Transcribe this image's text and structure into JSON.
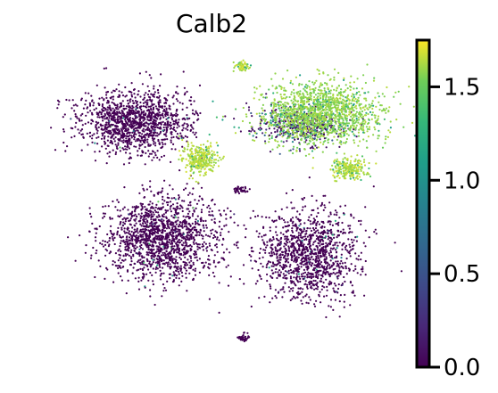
{
  "chart_data": {
    "type": "scatter",
    "title": "Calb2",
    "xlabel": "",
    "ylabel": "",
    "axes_visible": false,
    "colormap": "viridis",
    "colorbar": {
      "ticks": [
        "0.0",
        "0.5",
        "1.0",
        "1.5"
      ],
      "tick_values": [
        0.0,
        0.5,
        1.0,
        1.5
      ],
      "range": [
        0.0,
        1.75
      ],
      "placement": "right"
    },
    "colors": {
      "low": "#440154",
      "mid_low": "#3b528b",
      "mid": "#21918c",
      "mid_high": "#5ec962",
      "high": "#fde725"
    },
    "clusters": [
      {
        "label": "top-small",
        "cx": 0.21,
        "cy": 0.88,
        "spread": [
          0.05,
          0.04
        ],
        "n": 60,
        "value": 1.7
      },
      {
        "label": "left-upper",
        "cx": -0.55,
        "cy": 0.48,
        "spread": [
          0.38,
          0.22
        ],
        "n": 1300,
        "value": 0.0
      },
      {
        "label": "left-junction-yellow",
        "cx": -0.08,
        "cy": 0.22,
        "spread": [
          0.12,
          0.1
        ],
        "n": 320,
        "value": 1.7
      },
      {
        "label": "left-lower",
        "cx": -0.35,
        "cy": -0.35,
        "spread": [
          0.4,
          0.3
        ],
        "n": 1500,
        "value": 0.0
      },
      {
        "label": "right-upper-yellow",
        "cx": 0.78,
        "cy": 0.55,
        "spread": [
          0.42,
          0.22
        ],
        "n": 1400,
        "value": 1.65
      },
      {
        "label": "right-upper-mixed",
        "cx": 0.62,
        "cy": 0.46,
        "spread": [
          0.36,
          0.14
        ],
        "n": 500,
        "value": 0.4
      },
      {
        "label": "right-mid-yellow",
        "cx": 0.98,
        "cy": 0.15,
        "spread": [
          0.14,
          0.08
        ],
        "n": 220,
        "value": 1.7
      },
      {
        "label": "right-lower",
        "cx": 0.68,
        "cy": -0.45,
        "spread": [
          0.35,
          0.32
        ],
        "n": 1200,
        "value": 0.0
      },
      {
        "label": "center-small",
        "cx": 0.2,
        "cy": 0.0,
        "spread": [
          0.06,
          0.02
        ],
        "n": 40,
        "value": 0.0
      },
      {
        "label": "bottom-small",
        "cx": 0.22,
        "cy": -1.05,
        "spread": [
          0.05,
          0.03
        ],
        "n": 40,
        "value": 0.0
      }
    ]
  }
}
